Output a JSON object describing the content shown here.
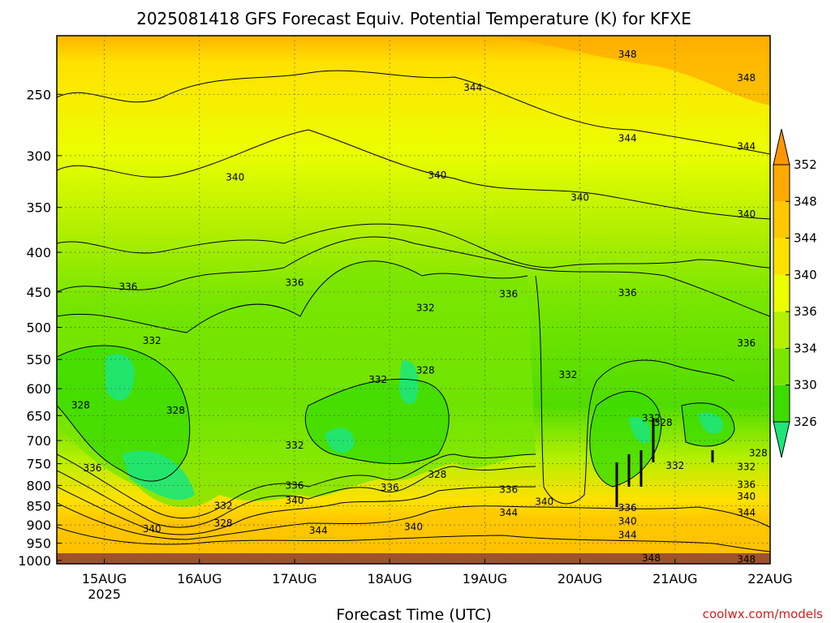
{
  "chart_data": {
    "type": "heatmap",
    "title": "2025081418 GFS Forecast Equiv. Potential Temperature (K) for KFXE",
    "xlabel": "Forecast Time (UTC)",
    "ylabel": "",
    "credit": "coolwx.com/models",
    "x_ticks": [
      "15AUG",
      "16AUG",
      "17AUG",
      "18AUG",
      "19AUG",
      "20AUG",
      "21AUG",
      "22AUG"
    ],
    "x_year": "2025",
    "y_ticks": [
      250,
      300,
      350,
      400,
      450,
      500,
      550,
      600,
      650,
      700,
      750,
      800,
      850,
      900,
      950,
      1000
    ],
    "ylim": [
      1010,
      210
    ],
    "y_scale": "log-pressure",
    "colorbar": {
      "levels": [
        326,
        330,
        334,
        336,
        340,
        344,
        348,
        352
      ],
      "labels": [
        "326",
        "330",
        "334",
        "336",
        "340",
        "344",
        "348",
        "352"
      ],
      "colors": [
        "#1ee678",
        "#3cdc00",
        "#78e600",
        "#b4f000",
        "#ebff00",
        "#ffe100",
        "#ffc800",
        "#ffaa00",
        "#ff9600"
      ]
    },
    "contour_labels": [
      {
        "text": "348",
        "time": "2025-08-20T12",
        "p": 222
      },
      {
        "text": "348",
        "time": "2025-08-21T18",
        "p": 238
      },
      {
        "text": "344",
        "time": "2025-08-18T21",
        "p": 245
      },
      {
        "text": "344",
        "time": "2025-08-20T12",
        "p": 285
      },
      {
        "text": "344",
        "time": "2025-08-21T18",
        "p": 292
      },
      {
        "text": "340",
        "time": "2025-08-16T09",
        "p": 320
      },
      {
        "text": "340",
        "time": "2025-08-18T12",
        "p": 318
      },
      {
        "text": "340",
        "time": "2025-08-20T00",
        "p": 340
      },
      {
        "text": "340",
        "time": "2025-08-21T18",
        "p": 357
      },
      {
        "text": "336",
        "time": "2025-08-15T06",
        "p": 443
      },
      {
        "text": "336",
        "time": "2025-08-17T00",
        "p": 438
      },
      {
        "text": "336",
        "time": "2025-08-19T06",
        "p": 453
      },
      {
        "text": "336",
        "time": "2025-08-20T12",
        "p": 451
      },
      {
        "text": "336",
        "time": "2025-08-21T18",
        "p": 524
      },
      {
        "text": "332",
        "time": "2025-08-18T09",
        "p": 472
      },
      {
        "text": "332",
        "time": "2025-08-15T12",
        "p": 520
      },
      {
        "text": "332",
        "time": "2025-08-17T21",
        "p": 584
      },
      {
        "text": "332",
        "time": "2025-08-19T21",
        "p": 576
      },
      {
        "text": "332",
        "time": "2025-08-20T18",
        "p": 655
      },
      {
        "text": "332",
        "time": "2025-08-17T00",
        "p": 710
      },
      {
        "text": "332",
        "time": "2025-08-21T00",
        "p": 754
      },
      {
        "text": "332",
        "time": "2025-08-21T18",
        "p": 757
      },
      {
        "text": "332",
        "time": "2025-08-16T06",
        "p": 850
      },
      {
        "text": "328",
        "time": "2025-08-14T18",
        "p": 630
      },
      {
        "text": "328",
        "time": "2025-08-15T18",
        "p": 640
      },
      {
        "text": "328",
        "time": "2025-08-18T09",
        "p": 568
      },
      {
        "text": "328",
        "time": "2025-08-18T12",
        "p": 775
      },
      {
        "text": "328",
        "time": "2025-08-20T21",
        "p": 664
      },
      {
        "text": "328",
        "time": "2025-08-21T21",
        "p": 727
      },
      {
        "text": "328",
        "time": "2025-08-16T06",
        "p": 895
      },
      {
        "text": "336",
        "time": "2025-08-14T21",
        "p": 760
      },
      {
        "text": "336",
        "time": "2025-08-17T00",
        "p": 800
      },
      {
        "text": "336",
        "time": "2025-08-18T00",
        "p": 805
      },
      {
        "text": "336",
        "time": "2025-08-19T06",
        "p": 810
      },
      {
        "text": "336",
        "time": "2025-08-20T12",
        "p": 855
      },
      {
        "text": "336",
        "time": "2025-08-21T18",
        "p": 798
      },
      {
        "text": "340",
        "time": "2025-08-15T12",
        "p": 910
      },
      {
        "text": "340",
        "time": "2025-08-17T00",
        "p": 837
      },
      {
        "text": "340",
        "time": "2025-08-18T06",
        "p": 905
      },
      {
        "text": "340",
        "time": "2025-08-19T15",
        "p": 840
      },
      {
        "text": "340",
        "time": "2025-08-20T12",
        "p": 890
      },
      {
        "text": "340",
        "time": "2025-08-21T18",
        "p": 827
      },
      {
        "text": "344",
        "time": "2025-08-17T06",
        "p": 915
      },
      {
        "text": "344",
        "time": "2025-08-19T06",
        "p": 868
      },
      {
        "text": "344",
        "time": "2025-08-20T12",
        "p": 927
      },
      {
        "text": "344",
        "time": "2025-08-21T18",
        "p": 868
      },
      {
        "text": "348",
        "time": "2025-08-20T18",
        "p": 993
      },
      {
        "text": "348",
        "time": "2025-08-21T18",
        "p": 997
      }
    ]
  }
}
